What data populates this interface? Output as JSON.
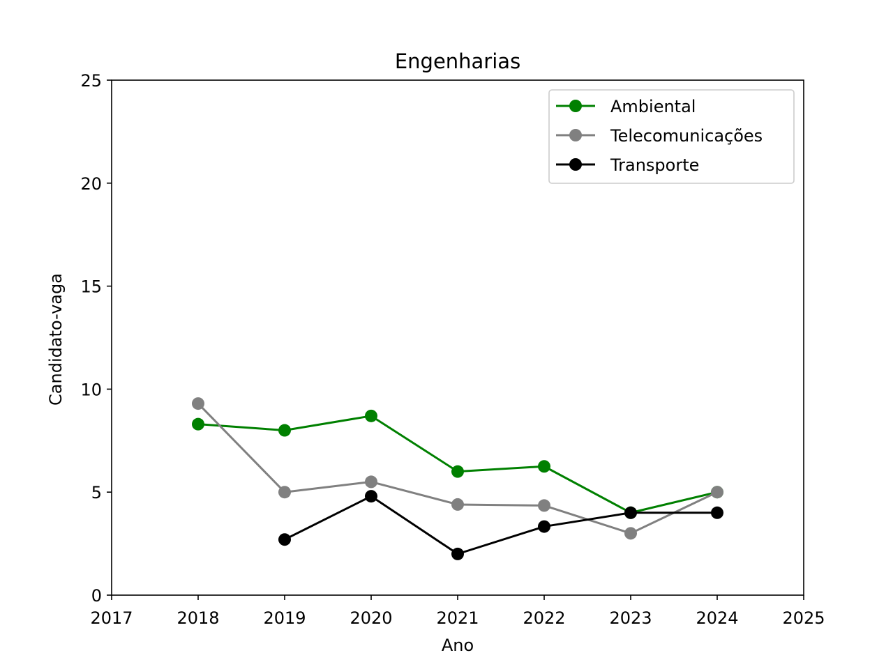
{
  "chart_data": {
    "type": "line",
    "title": "Engenharias",
    "xlabel": "Ano",
    "ylabel": "Candidato-vaga",
    "xlim": [
      2017,
      2025
    ],
    "ylim": [
      0,
      25
    ],
    "xticks": [
      2017,
      2018,
      2019,
      2020,
      2021,
      2022,
      2023,
      2024,
      2025
    ],
    "yticks": [
      0,
      5,
      10,
      15,
      20,
      25
    ],
    "grid": false,
    "legend_position": "top-right",
    "series": [
      {
        "name": "Ambiental",
        "color": "#008000",
        "marker": "circle",
        "x": [
          2018,
          2019,
          2020,
          2021,
          2022,
          2023,
          2024
        ],
        "y": [
          8.3,
          8.0,
          8.7,
          6.0,
          6.25,
          4.0,
          5.0
        ]
      },
      {
        "name": "Telecomunicações",
        "color": "#808080",
        "marker": "circle",
        "x": [
          2018,
          2019,
          2020,
          2021,
          2022,
          2023,
          2024
        ],
        "y": [
          9.3,
          5.0,
          5.5,
          4.4,
          4.35,
          3.0,
          5.0
        ]
      },
      {
        "name": "Transporte",
        "color": "#000000",
        "marker": "circle",
        "x": [
          2019,
          2020,
          2021,
          2022,
          2023,
          2024
        ],
        "y": [
          2.7,
          4.8,
          2.0,
          3.33,
          4.0,
          4.0
        ]
      }
    ]
  }
}
